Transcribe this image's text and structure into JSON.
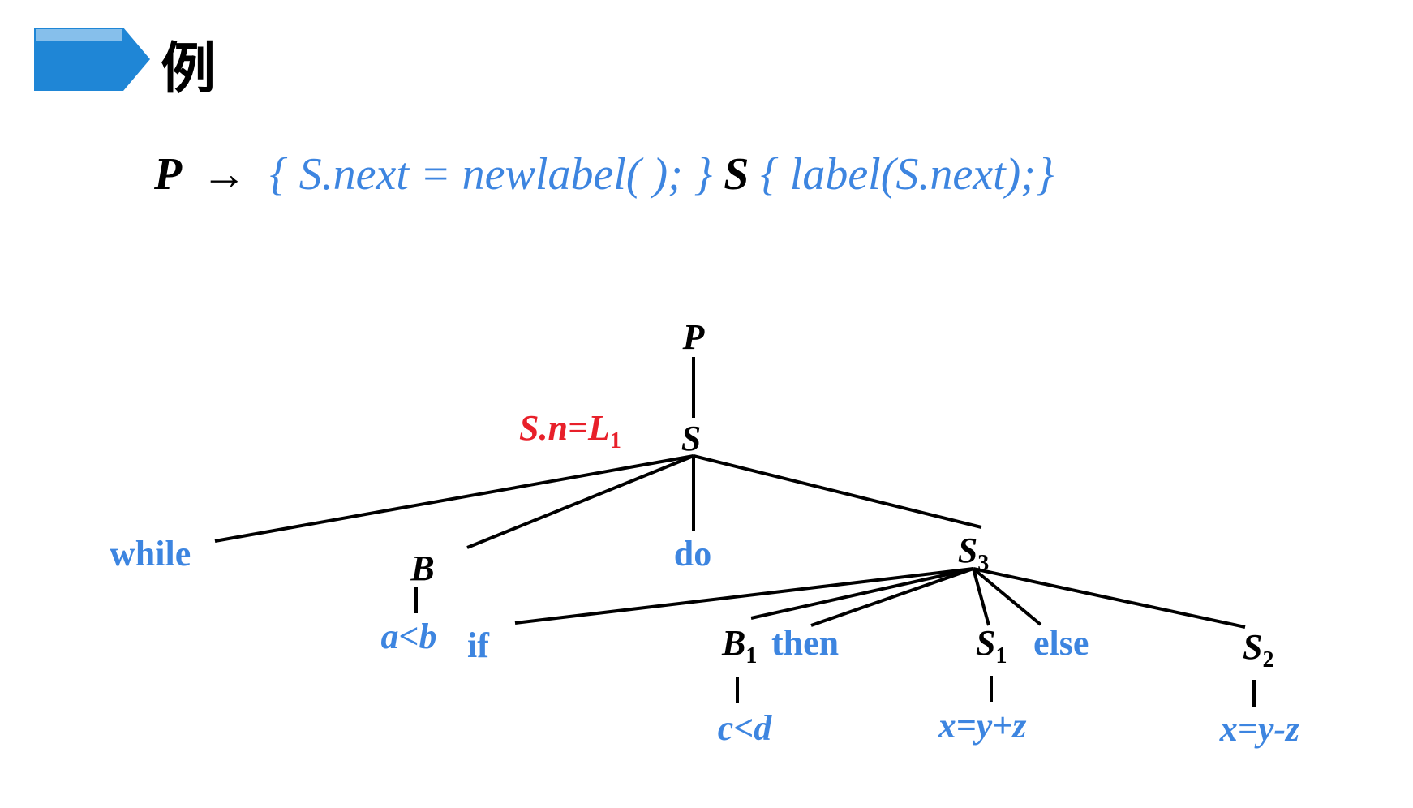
{
  "slide": {
    "title": "例",
    "colors": {
      "banner": "#1f86d6",
      "banner_pattern": "#a9d2f2",
      "blue": "#3d85e0",
      "red": "#e8202a",
      "black": "#000000"
    }
  },
  "rule": {
    "lhs": "P",
    "arrow": "→",
    "action1": "{ S.next = newlabel( ); }",
    "nonterminal": "S",
    "action2": "{ label(S.next);}"
  },
  "tree": {
    "root": "P",
    "s_node": "S",
    "annotation": {
      "base": "S.n=L",
      "sub": "1"
    },
    "while": "while",
    "b_node": "B",
    "b_child": "a<b",
    "do": "do",
    "s3": {
      "base": "S",
      "sub": "3"
    },
    "if": "if",
    "b1": {
      "base": "B",
      "sub": "1"
    },
    "then": "then",
    "b1_child": "c<d",
    "s1": {
      "base": "S",
      "sub": "1"
    },
    "s1_child": "x=y+z",
    "else": "else",
    "s2": {
      "base": "S",
      "sub": "2"
    },
    "s2_child": "x=y-z"
  }
}
